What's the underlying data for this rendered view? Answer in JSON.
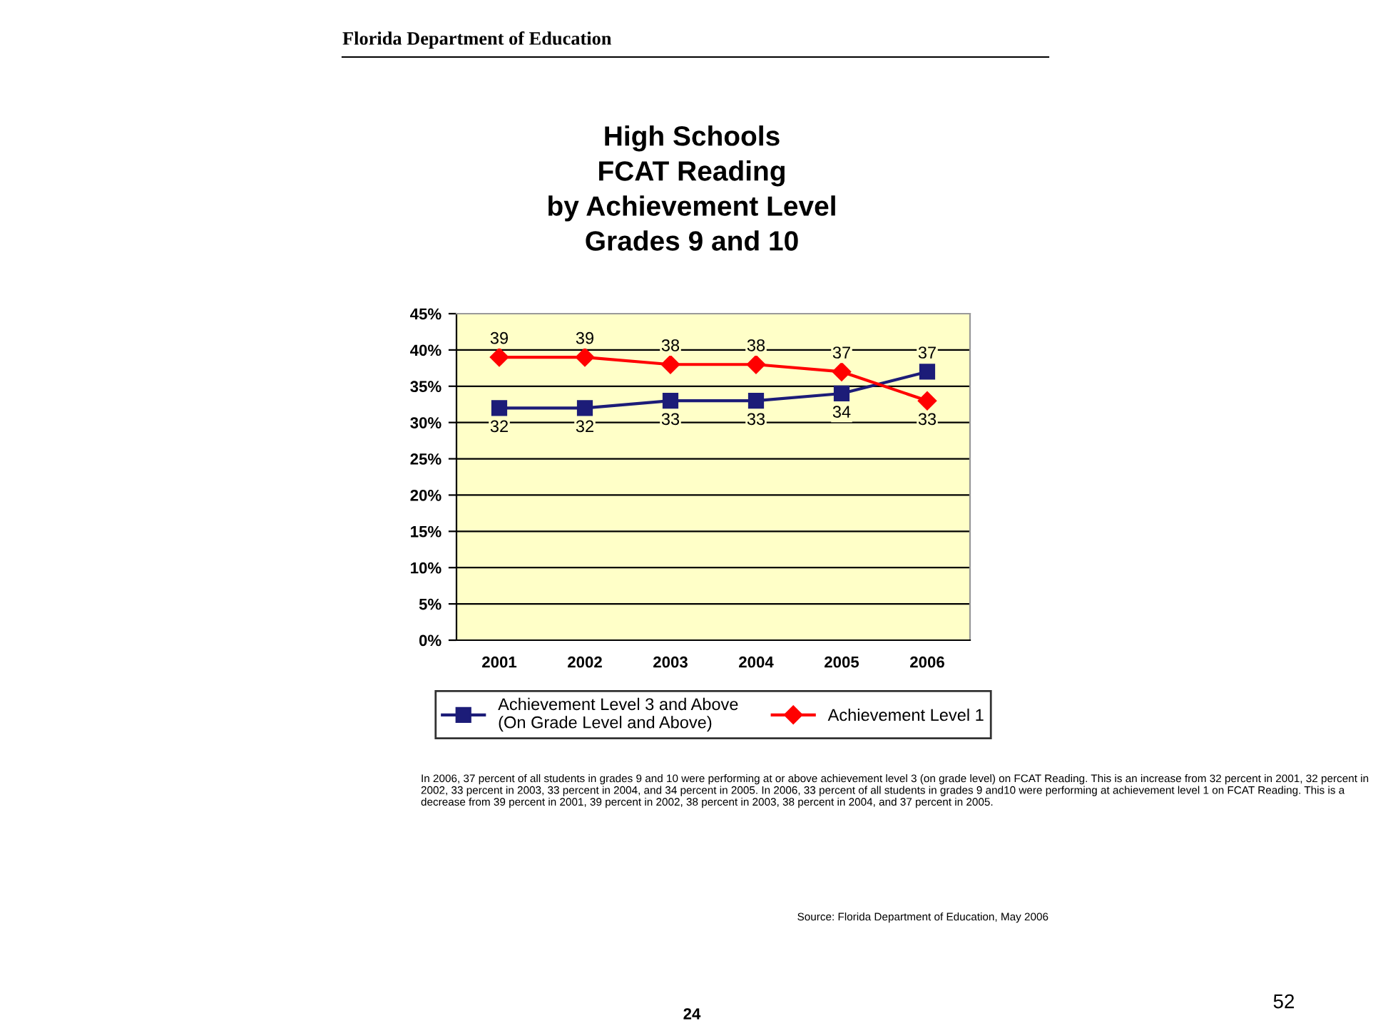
{
  "chart_data": {
    "type": "line",
    "title": "High Schools\nFCAT Reading\nby Achievement Level\nGrades 9 and 10",
    "categories": [
      "2001",
      "2002",
      "2003",
      "2004",
      "2005",
      "2006"
    ],
    "series": [
      {
        "name": "Achievement Level 3 and Above\n(On Grade Level and Above)",
        "color": "#1c1c78",
        "marker": "square",
        "values": [
          32,
          32,
          33,
          33,
          34,
          37
        ]
      },
      {
        "name": "Achievement Level 1",
        "color": "#ff0000",
        "marker": "diamond",
        "values": [
          39,
          39,
          38,
          38,
          37,
          33
        ]
      }
    ],
    "ylim": [
      0,
      45
    ],
    "yticks": [
      {
        "value": 0,
        "label": "0%"
      },
      {
        "value": 5,
        "label": "5%"
      },
      {
        "value": 10,
        "label": "10%"
      },
      {
        "value": 15,
        "label": "15%"
      },
      {
        "value": 20,
        "label": "20%"
      },
      {
        "value": 25,
        "label": "25%"
      },
      {
        "value": 30,
        "label": "30%"
      },
      {
        "value": 35,
        "label": "35%"
      },
      {
        "value": 40,
        "label": "40%"
      },
      {
        "value": 45,
        "label": "45%"
      }
    ],
    "grid": "y",
    "legend": "bottom",
    "data_labels": true,
    "line_style": "solid",
    "annotations": [
      "Florida Department of Education",
      "In 2006, 37 percent of all students in grades 9 and 10 were performing at or above achievement level 3 (on grade level) on FCAT Reading. This is an increase from 32 percent in 2001, 32 percent in 2002, 33 percent in 2003, 33 percent in 2004, and 34 percent in 2005. In 2006, 33 percent of all students in grades 9 and10 were performing at achievement level 1 on FCAT Reading. This is a decrease from 39 percent in 2001, 39 percent in 2002, 38 percent in 2003, 38 percent in 2004, and 37 percent in 2005.",
      "Source: Florida Department of Education, May 2006",
      "24",
      "52"
    ]
  }
}
